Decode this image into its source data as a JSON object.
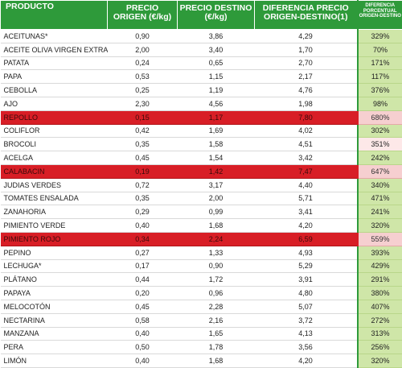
{
  "headers": {
    "producto": "PRODUCTO",
    "precio_origen": "PRECIO ORIGEN (€/kg)",
    "precio_destino": "PRECIO DESTINO (€/kg)",
    "diferencia": "DIFERENCIA PRECIO ORIGEN-DESTINO(1)",
    "diferencia_pct": "DIFERENCIA PORCENTUAL ORIGEN-DESTINO"
  },
  "rows": [
    {
      "producto": "ACEITUNAS*",
      "origen": "0,90",
      "destino": "3,86",
      "diferencia": "4,29",
      "pct": "329%",
      "highlight": false
    },
    {
      "producto": "ACEITE OLIVA VIRGEN EXTRA*",
      "origen": "2,00",
      "destino": "3,40",
      "diferencia": "1,70",
      "pct": "70%",
      "highlight": false
    },
    {
      "producto": "PATATA",
      "origen": "0,24",
      "destino": "0,65",
      "diferencia": "2,70",
      "pct": "171%",
      "highlight": false
    },
    {
      "producto": "PAPA",
      "origen": "0,53",
      "origen_note": "",
      "destino": "1,15",
      "diferencia": "2,17",
      "pct": "117%",
      "highlight": false
    },
    {
      "producto": "CEBOLLA",
      "origen": "0,25",
      "destino": "1,19",
      "diferencia": "4,76",
      "pct": "376%",
      "highlight": false
    },
    {
      "producto": "AJO",
      "origen": "2,30",
      "destino": "4,56",
      "diferencia": "1,98",
      "pct": "98%",
      "highlight": false
    },
    {
      "producto": "REPOLLO",
      "origen": "0,15",
      "destino": "1,17",
      "diferencia": "7,80",
      "pct": "680%",
      "highlight": true
    },
    {
      "producto": "COLIFLOR",
      "origen": "0,42",
      "destino": "1,69",
      "diferencia": "4,02",
      "pct": "302%",
      "highlight": false
    },
    {
      "producto": "BROCOLI",
      "origen": "0,35",
      "destino": "1,58",
      "diferencia": "4,51",
      "pct": "351%",
      "highlight": false
    },
    {
      "producto": "ACELGA",
      "origen": "0,45",
      "destino": "1,54",
      "diferencia": "3,42",
      "pct": "242%",
      "highlight": false
    },
    {
      "producto": "CALABACIN",
      "origen": "0,19",
      "destino": "1,42",
      "diferencia": "7,47",
      "pct": "647%",
      "highlight": true
    },
    {
      "producto": "JUDIAS VERDES",
      "origen": "0,72",
      "destino": "3,17",
      "diferencia": "4,40",
      "pct": "340%",
      "highlight": false
    },
    {
      "producto": "TOMATES ENSALADA",
      "origen": "0,35",
      "destino": "2,00",
      "diferencia": "5,71",
      "pct": "471%",
      "highlight": false
    },
    {
      "producto": "ZANAHORIA",
      "origen": "0,29",
      "destino": "0,99",
      "diferencia": "3,41",
      "pct": "241%",
      "highlight": false
    },
    {
      "producto": "PIMIENTO VERDE",
      "origen": "0,40",
      "destino": "1,68",
      "diferencia": "4,20",
      "pct": "320%",
      "highlight": false
    },
    {
      "producto": "PIMIENTO ROJO",
      "origen": "0,34",
      "destino": "2,24",
      "diferencia": "6,59",
      "pct": "559%",
      "highlight": true
    },
    {
      "producto": "PEPINO",
      "origen": "0,27",
      "destino": "1,33",
      "diferencia": "4,93",
      "pct": "393%",
      "highlight": false
    },
    {
      "producto": "LECHUGA*",
      "origen": "0,17",
      "destino": "0,90",
      "diferencia": "5,29",
      "pct": "429%",
      "highlight": false
    },
    {
      "producto": "PLÁTANO",
      "origen": "0,44",
      "destino": "1,72",
      "diferencia": "3,91",
      "pct": "291%",
      "highlight": false
    },
    {
      "producto": "PAPAYA",
      "origen": "0,20",
      "destino": "0,96",
      "diferencia": "4,80",
      "pct": "380%",
      "highlight": false
    },
    {
      "producto": "MELOCOTÓN",
      "origen": "0,45",
      "destino": "2,28",
      "diferencia": "5,07",
      "pct": "407%",
      "highlight": false
    },
    {
      "producto": "NECTARINA",
      "origen": "0,58",
      "destino": "2,16",
      "diferencia": "3,72",
      "pct": "272%",
      "highlight": false
    },
    {
      "producto": "MANZANA",
      "origen": "0,40",
      "destino": "1,65",
      "diferencia": "4,13",
      "pct": "313%",
      "highlight": false
    },
    {
      "producto": "PERA",
      "origen": "0,50",
      "destino": "1,78",
      "diferencia": "3,56",
      "pct": "256%",
      "highlight": false
    },
    {
      "producto": "LIMÓN",
      "origen": "0,40",
      "destino": "1,68",
      "diferencia": "4,20",
      "pct": "320%",
      "highlight": false
    }
  ],
  "colors": {
    "header_green": "#2e9a3a",
    "highlight_red": "#d81e26",
    "pct_green": "#cfe6a8"
  }
}
